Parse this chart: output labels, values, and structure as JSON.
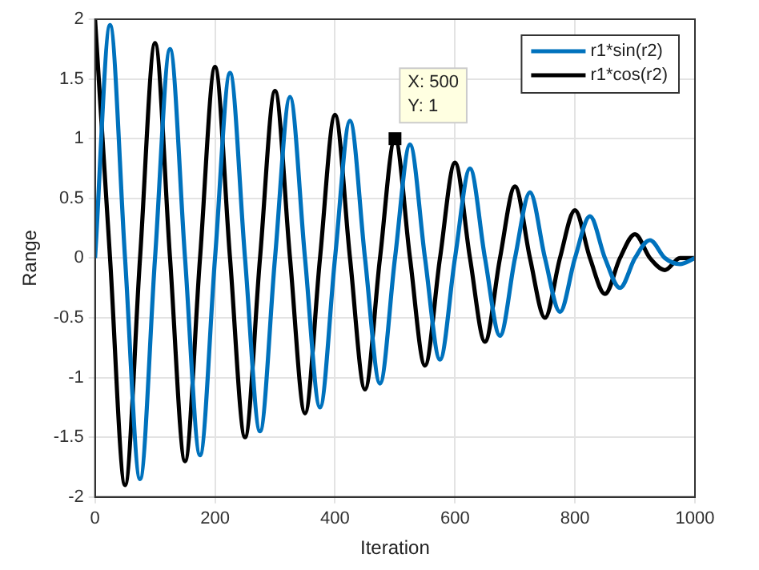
{
  "chart_data": {
    "type": "line",
    "xlabel": "Iteration",
    "ylabel": "Range",
    "x": [
      0,
      25,
      50,
      75,
      100,
      125,
      150,
      175,
      200,
      225,
      250,
      275,
      300,
      325,
      350,
      375,
      400,
      425,
      450,
      475,
      500,
      525,
      550,
      575,
      600,
      625,
      650,
      675,
      700,
      725,
      750,
      775,
      800,
      825,
      850,
      875,
      900,
      925,
      950,
      975,
      1000
    ],
    "series": [
      {
        "name": "r1*sin(r2)",
        "color": "#0072bd",
        "values": [
          0,
          1.95,
          0,
          -1.85,
          0,
          1.75,
          0,
          -1.65,
          0,
          1.55,
          0,
          -1.45,
          0,
          1.35,
          0,
          -1.25,
          0,
          1.15,
          0,
          -1.05,
          0,
          0.95,
          0,
          -0.85,
          0,
          0.75,
          0,
          -0.65,
          0,
          0.55,
          0,
          -0.45,
          0,
          0.35,
          0,
          -0.25,
          0,
          0.15,
          0,
          -0.05,
          0
        ]
      },
      {
        "name": "r1*cos(r2)",
        "color": "#000000",
        "values": [
          2,
          0,
          -1.9,
          0,
          1.8,
          0,
          -1.7,
          0,
          1.6,
          0,
          -1.5,
          0,
          1.4,
          0,
          -1.3,
          0,
          1.2,
          0,
          -1.1,
          0,
          1.0,
          0,
          -0.9,
          0,
          0.8,
          0,
          -0.7,
          0,
          0.6,
          0,
          -0.5,
          0,
          0.4,
          0,
          -0.3,
          0,
          0.2,
          0,
          -0.1,
          0,
          0
        ]
      }
    ],
    "xlim": [
      0,
      1000
    ],
    "xticks": [
      0,
      200,
      400,
      600,
      800,
      1000
    ],
    "ylim": [
      -2,
      2
    ],
    "yticks": [
      -2,
      -1.5,
      -1,
      -0.5,
      0,
      0.5,
      1,
      1.5,
      2
    ],
    "grid": true,
    "legend": "top right",
    "marker": "none",
    "line_style": "solid",
    "annotations": [
      {
        "text": "X: 500\nY: 1",
        "x": 500,
        "y": 1
      }
    ]
  }
}
